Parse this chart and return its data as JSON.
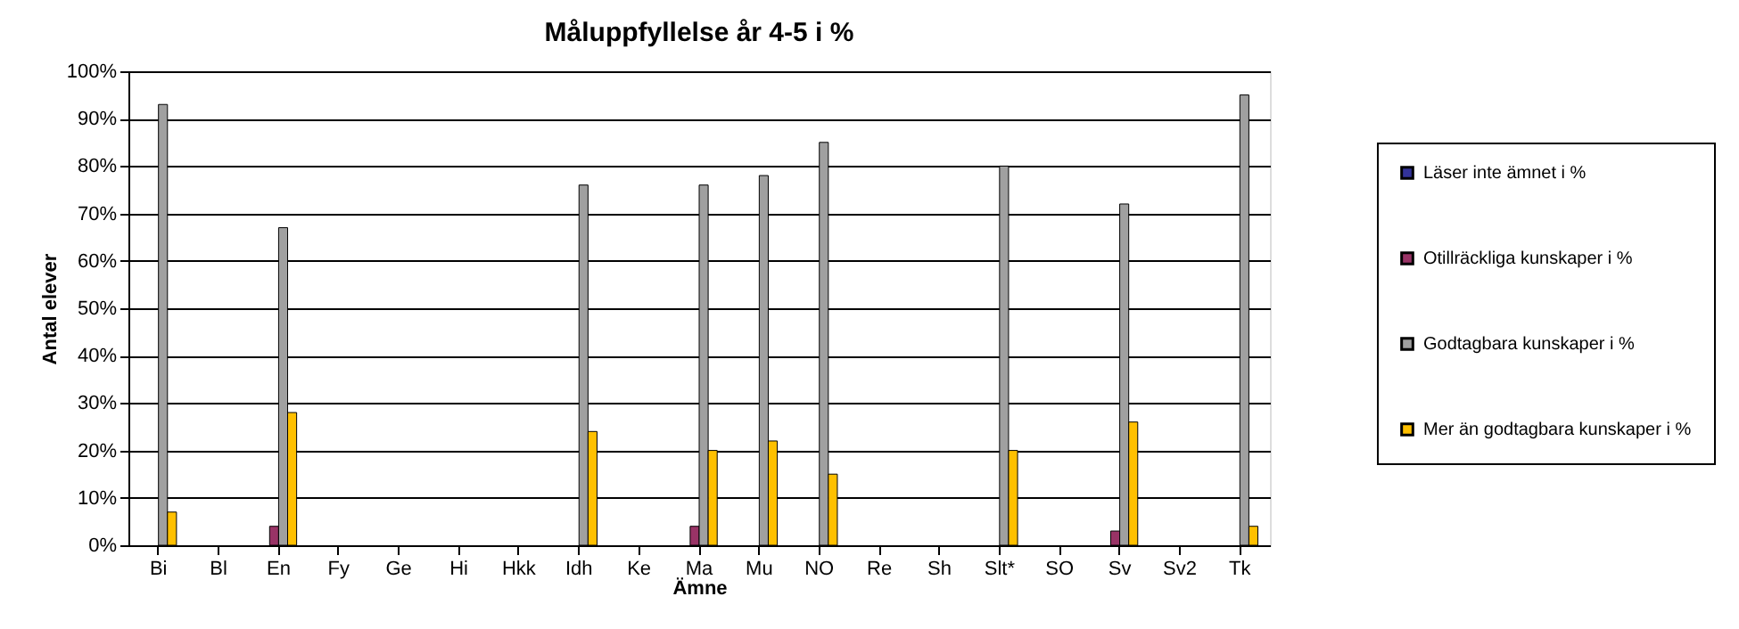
{
  "chart_data": {
    "type": "bar",
    "title": "Måluppfyllelse år 4-5 i %",
    "xlabel": "Ämne",
    "ylabel": "Antal elever",
    "categories": [
      "Bi",
      "Bl",
      "En",
      "Fy",
      "Ge",
      "Hi",
      "Hkk",
      "Idh",
      "Ke",
      "Ma",
      "Mu",
      "NO",
      "Re",
      "Sh",
      "Slt*",
      "SO",
      "Sv",
      "Sv2",
      "Tk"
    ],
    "series": [
      {
        "name": "Läser inte ämnet i %",
        "color": "#333399",
        "values": [
          null,
          null,
          null,
          null,
          null,
          null,
          null,
          null,
          null,
          null,
          null,
          null,
          null,
          null,
          null,
          null,
          null,
          null,
          null
        ]
      },
      {
        "name": "Otillräckliga kunskaper i %",
        "color": "#993366",
        "values": [
          null,
          null,
          4,
          null,
          null,
          null,
          null,
          null,
          null,
          4,
          null,
          null,
          null,
          null,
          null,
          null,
          3,
          null,
          null
        ]
      },
      {
        "name": "Godtagbara kunskaper i %",
        "color": "#a0a0a0",
        "values": [
          93,
          null,
          67,
          null,
          null,
          null,
          null,
          76,
          null,
          76,
          78,
          85,
          null,
          null,
          80,
          null,
          72,
          null,
          95
        ]
      },
      {
        "name": "Mer än godtagbara kunskaper i %",
        "color": "#ffc000",
        "values": [
          7,
          null,
          28,
          null,
          null,
          null,
          null,
          24,
          null,
          20,
          22,
          15,
          null,
          null,
          20,
          null,
          26,
          null,
          4
        ]
      }
    ],
    "ylim": [
      0,
      100
    ],
    "yticks": [
      {
        "value": 0,
        "label": "0%"
      },
      {
        "value": 10,
        "label": "10%"
      },
      {
        "value": 20,
        "label": "20%"
      },
      {
        "value": 30,
        "label": "30%"
      },
      {
        "value": 40,
        "label": "40%"
      },
      {
        "value": 50,
        "label": "50%"
      },
      {
        "value": 60,
        "label": "60%"
      },
      {
        "value": 70,
        "label": "70%"
      },
      {
        "value": 80,
        "label": "80%"
      },
      {
        "value": 90,
        "label": "90%"
      },
      {
        "value": 100,
        "label": "100%"
      }
    ],
    "grid": "y",
    "legend": "right"
  }
}
